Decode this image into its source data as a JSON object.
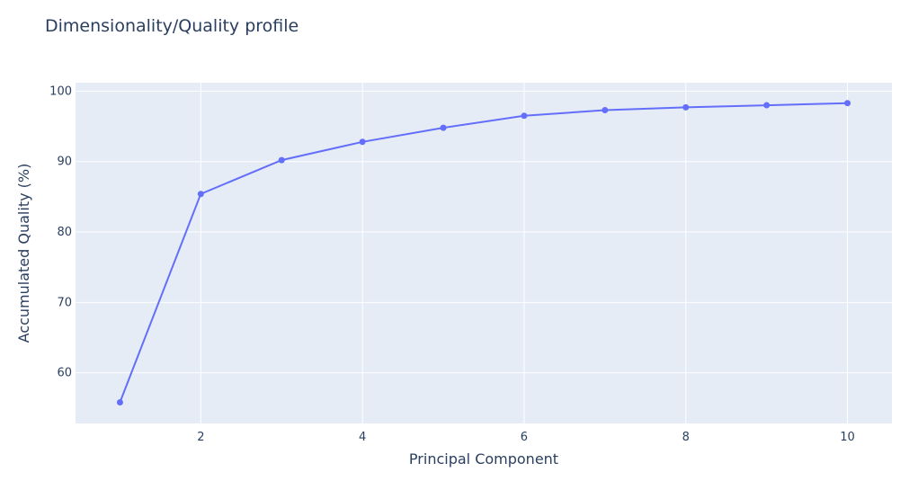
{
  "chart_data": {
    "type": "line",
    "title": "Dimensionality/Quality profile",
    "xlabel": "Principal Component",
    "ylabel": "Accumulated Quality (%)",
    "x": [
      1,
      2,
      3,
      4,
      5,
      6,
      7,
      8,
      9,
      10
    ],
    "series": [
      {
        "values": [
          55.8,
          85.4,
          90.2,
          92.8,
          94.8,
          96.5,
          97.3,
          97.7,
          98.0,
          98.3
        ]
      }
    ],
    "xlim": [
      0.45,
      10.55
    ],
    "ylim": [
      52.8,
      101.2
    ],
    "x_ticks": [
      2,
      4,
      6,
      8,
      10
    ],
    "y_ticks": [
      60,
      70,
      80,
      90,
      100
    ],
    "grid": true,
    "colors": {
      "plot_bg": "#e5ecf6",
      "line": "#636efa",
      "grid": "#ffffff",
      "text": "#2a3f5f"
    }
  }
}
